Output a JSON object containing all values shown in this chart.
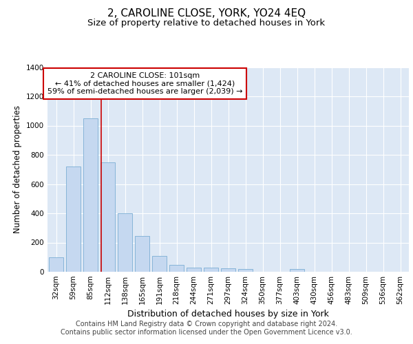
{
  "title": "2, CAROLINE CLOSE, YORK, YO24 4EQ",
  "subtitle": "Size of property relative to detached houses in York",
  "xlabel": "Distribution of detached houses by size in York",
  "ylabel": "Number of detached properties",
  "footer_line1": "Contains HM Land Registry data © Crown copyright and database right 2024.",
  "footer_line2": "Contains public sector information licensed under the Open Government Licence v3.0.",
  "annotation_title": "2 CAROLINE CLOSE: 101sqm",
  "annotation_line2": "← 41% of detached houses are smaller (1,424)",
  "annotation_line3": "59% of semi-detached houses are larger (2,039) →",
  "categories": [
    "32sqm",
    "59sqm",
    "85sqm",
    "112sqm",
    "138sqm",
    "165sqm",
    "191sqm",
    "218sqm",
    "244sqm",
    "271sqm",
    "297sqm",
    "324sqm",
    "350sqm",
    "377sqm",
    "403sqm",
    "430sqm",
    "456sqm",
    "483sqm",
    "509sqm",
    "536sqm",
    "562sqm"
  ],
  "bar_heights": [
    100,
    720,
    1050,
    750,
    400,
    245,
    110,
    48,
    27,
    30,
    25,
    18,
    0,
    0,
    20,
    0,
    0,
    0,
    0,
    0,
    0
  ],
  "bar_color": "#c5d8f0",
  "bar_edge_color": "#7aadd4",
  "vline_color": "#cc0000",
  "vline_x_index": 2.63,
  "ylim": [
    0,
    1400
  ],
  "yticks": [
    0,
    200,
    400,
    600,
    800,
    1000,
    1200,
    1400
  ],
  "fig_bg_color": "#ffffff",
  "plot_bg_color": "#dde8f5",
  "grid_color": "#ffffff",
  "annotation_box_facecolor": "#ffffff",
  "annotation_box_edgecolor": "#cc0000",
  "title_fontsize": 11,
  "subtitle_fontsize": 9.5,
  "tick_fontsize": 7.5,
  "ylabel_fontsize": 8.5,
  "xlabel_fontsize": 9,
  "footer_fontsize": 7,
  "annotation_fontsize": 8
}
